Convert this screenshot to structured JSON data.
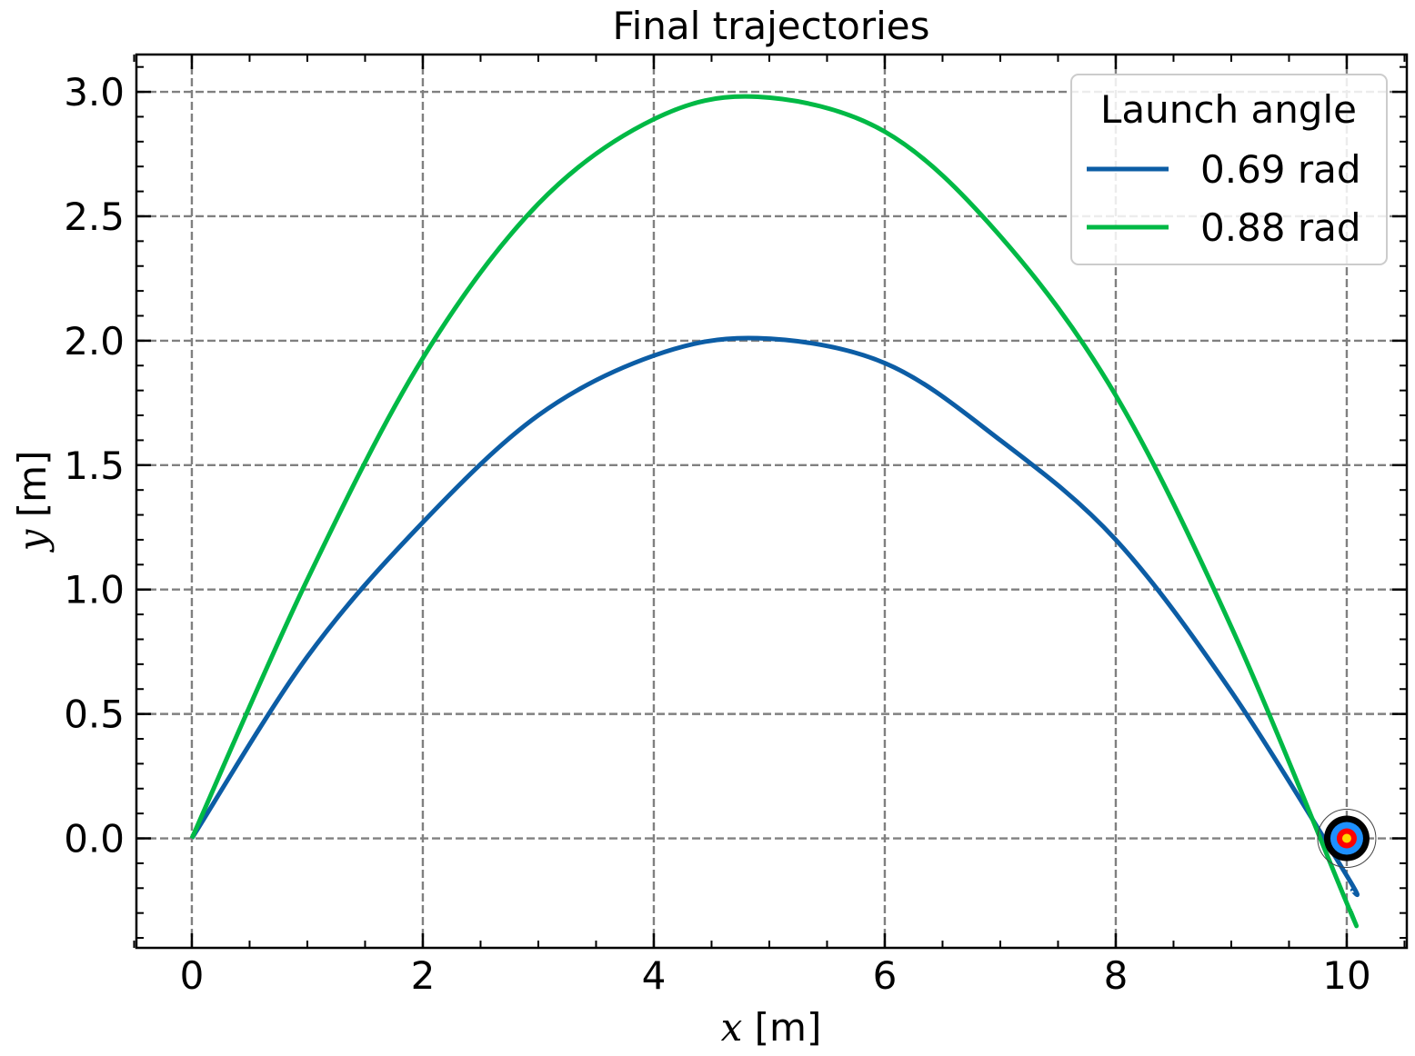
{
  "chart_data": {
    "type": "line",
    "title": "Final trajectories",
    "xlabel": {
      "var": "x",
      "unit": " [m]"
    },
    "ylabel": {
      "var": "y",
      "unit": " [m]"
    },
    "xlim": [
      -0.48,
      10.52
    ],
    "ylim": [
      -0.44,
      3.15
    ],
    "x_ticks": [
      0,
      2,
      4,
      6,
      8,
      10
    ],
    "x_tick_labels": [
      "0",
      "2",
      "4",
      "6",
      "8",
      "10"
    ],
    "y_ticks": [
      0.0,
      0.5,
      1.0,
      1.5,
      2.0,
      2.5,
      3.0
    ],
    "y_tick_labels": [
      "0.0",
      "0.5",
      "1.0",
      "1.5",
      "2.0",
      "2.5",
      "3.0"
    ],
    "grid": true,
    "legend": {
      "title": "Launch angle",
      "position": "top-right"
    },
    "series": [
      {
        "name": "0.69 rad",
        "color": "#0C5DA5",
        "x": [
          0,
          1,
          2,
          3,
          4,
          4.9,
          6,
          7,
          8,
          9,
          10,
          10.05
        ],
        "y": [
          0,
          0.73,
          1.27,
          1.7,
          1.94,
          2.01,
          1.91,
          1.6,
          1.2,
          0.59,
          -0.15,
          -0.21
        ]
      },
      {
        "name": "0.88 rad",
        "color": "#00B945",
        "x": [
          0,
          1,
          2,
          3,
          4,
          4.9,
          6,
          7,
          8,
          9,
          10,
          10.03
        ],
        "y": [
          0,
          1.04,
          1.93,
          2.55,
          2.89,
          2.98,
          2.84,
          2.42,
          1.78,
          0.85,
          -0.26,
          -0.29
        ]
      }
    ],
    "target": {
      "x": 10.0,
      "y": 0.0,
      "colors": [
        "#000000",
        "#1E90FF",
        "#FF0000",
        "#FFD700"
      ]
    }
  }
}
